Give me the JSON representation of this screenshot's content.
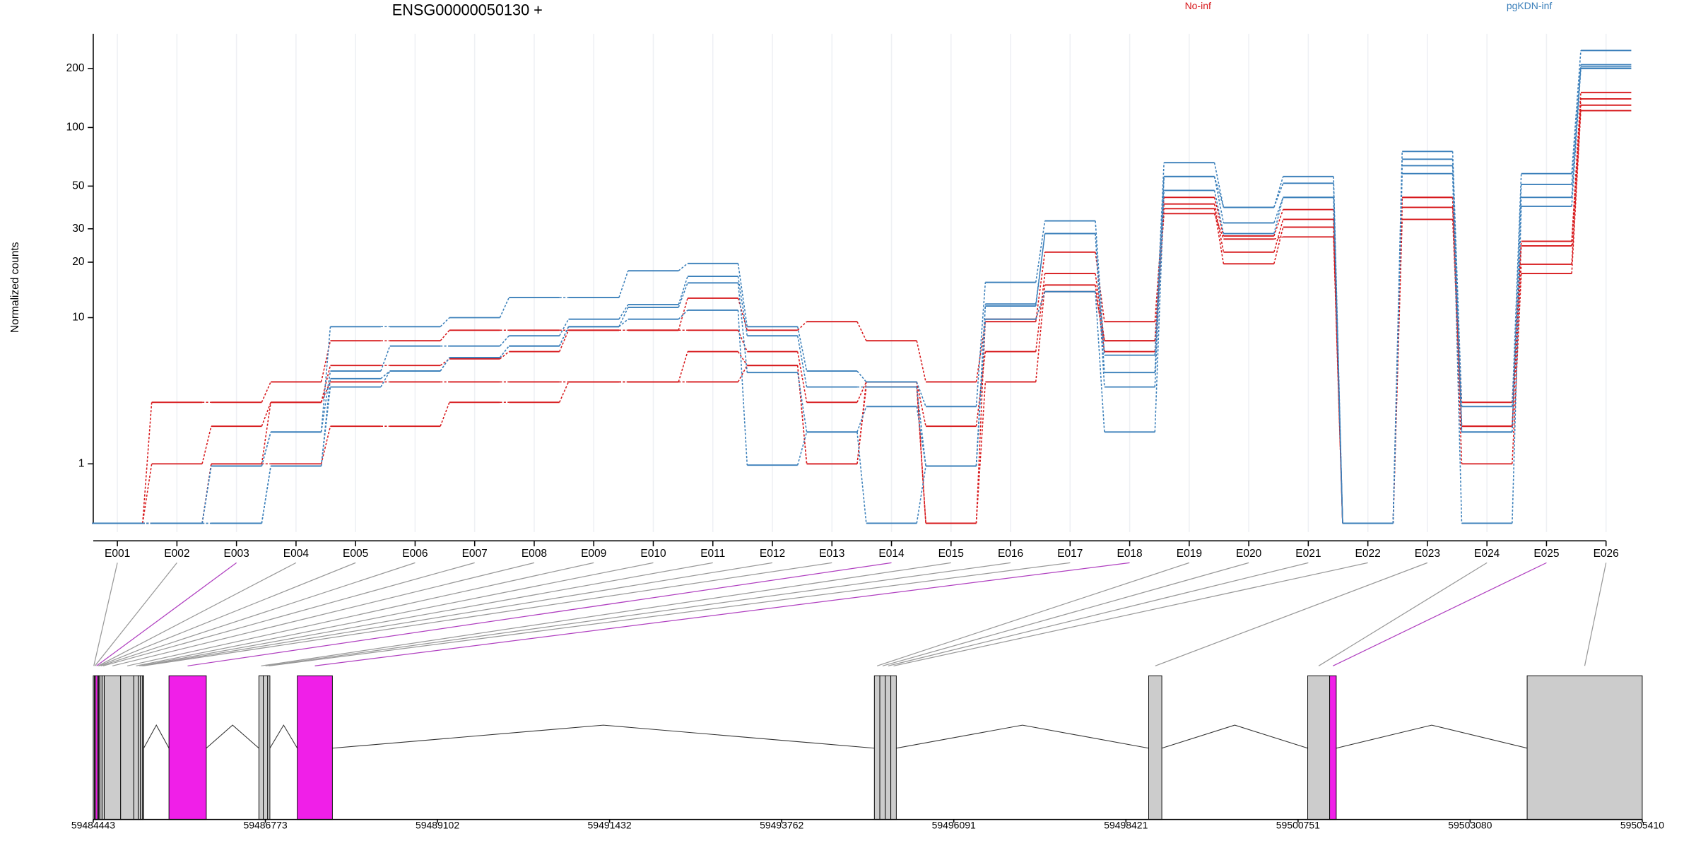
{
  "chart_data": {
    "type": "exon-usage",
    "title": "ENSG00000050130 +",
    "y_label": "Normalized counts",
    "yscale": "log1p",
    "ylim": [
      0,
      300
    ],
    "yticks": [
      1,
      10,
      20,
      30,
      50,
      100,
      200
    ],
    "x_grid": true,
    "legend": "top",
    "categories": [
      "E001",
      "E002",
      "E003",
      "E004",
      "E005",
      "E006",
      "E007",
      "E008",
      "E009",
      "E010",
      "E011",
      "E012",
      "E013",
      "E014",
      "E015",
      "E016",
      "E017",
      "E018",
      "E019",
      "E020",
      "E021",
      "E022",
      "E023",
      "E024",
      "E025",
      "E026"
    ],
    "groups": [
      {
        "name": "No-inf",
        "color": "#d7191c",
        "series": [
          [
            0,
            3.1,
            3.1,
            4.2,
            7.4,
            7.4,
            8.5,
            8.5,
            8.5,
            8.5,
            12.8,
            8.5,
            9.5,
            7.4,
            4.2,
            9.5,
            22.6,
            9.5,
            43.7,
            27.5,
            37.8,
            0,
            43.7,
            3.1,
            25.8,
            151
          ],
          [
            0,
            1,
            2.1,
            3.1,
            5.3,
            5.3,
            5.8,
            6.4,
            8.5,
            8.5,
            8.5,
            6.4,
            3.1,
            4.2,
            2.1,
            6.4,
            17.4,
            7.4,
            40.4,
            22.6,
            33.6,
            0,
            38.8,
            2.1,
            24.4,
            140
          ],
          [
            0,
            0,
            1,
            3.1,
            4.2,
            4.2,
            4.2,
            4.2,
            4.2,
            4.2,
            6.4,
            5.3,
            1,
            4.2,
            0,
            4.2,
            15.1,
            6.4,
            38.2,
            19.6,
            30.6,
            0,
            33.6,
            2.1,
            19.5,
            130
          ],
          [
            0,
            0,
            1,
            1,
            2.1,
            2.1,
            3.1,
            3.1,
            4.2,
            4.2,
            4.2,
            5.3,
            1,
            3.9,
            0,
            9.8,
            13.9,
            7.4,
            36,
            26.5,
            27.2,
            0,
            43.7,
            1,
            17.4,
            122
          ]
        ]
      },
      {
        "name": "pgKDN-inf",
        "color": "#3a7fba",
        "series": [
          [
            0,
            0,
            0.95,
            1.9,
            8.9,
            8.9,
            10,
            12.9,
            12.9,
            18,
            19.7,
            8.9,
            4.9,
            4.2,
            2.9,
            15.6,
            33,
            6.1,
            66,
            38.8,
            56,
            0,
            75.4,
            2.9,
            58,
            247
          ],
          [
            0,
            0,
            0.95,
            1.9,
            4.9,
            6.9,
            6.9,
            7.9,
            9.8,
            11.8,
            16.8,
            7.9,
            3.9,
            3.9,
            0.95,
            11.9,
            28.3,
            4.8,
            56,
            38.8,
            51.7,
            0,
            68.8,
            1.9,
            51,
            209
          ],
          [
            0,
            0,
            0,
            0.95,
            4.4,
            4.9,
            5.9,
            6.9,
            8.9,
            11.4,
            15.5,
            4.8,
            1.9,
            2.9,
            0.95,
            11.6,
            28.3,
            3.9,
            56,
            32.2,
            43.7,
            0,
            63.7,
            1.9,
            43.7,
            204
          ],
          [
            0,
            0,
            0,
            0.95,
            3.9,
            4.9,
            5.9,
            6.9,
            8.9,
            9.8,
            11,
            0.97,
            1.9,
            0,
            0.95,
            9.8,
            13.9,
            1.9,
            47.5,
            28.3,
            43.7,
            0,
            58,
            0,
            39.3,
            200
          ]
        ]
      }
    ],
    "gene_model": {
      "xlim": [
        59484443,
        59505410
      ],
      "xticks": [
        59484443,
        59486773,
        59489102,
        59491432,
        59493762,
        59496091,
        59498421,
        59500751,
        59503080,
        59505410
      ],
      "exon_color": "#cccccc",
      "highlight_color": "#f01fe8",
      "exons": [
        {
          "start": 59484443,
          "end": 59484458,
          "highlight": false
        },
        {
          "start": 59484458,
          "end": 59484473,
          "highlight": false
        },
        {
          "start": 59484473,
          "end": 59484502,
          "highlight": true
        },
        {
          "start": 59484502,
          "end": 59484517,
          "highlight": false
        },
        {
          "start": 59484517,
          "end": 59484532,
          "highlight": false
        },
        {
          "start": 59484532,
          "end": 59484562,
          "highlight": false
        },
        {
          "start": 59484562,
          "end": 59484592,
          "highlight": false
        },
        {
          "start": 59484592,
          "end": 59484814,
          "highlight": false
        },
        {
          "start": 59484814,
          "end": 59484992,
          "highlight": false
        },
        {
          "start": 59484992,
          "end": 59485052,
          "highlight": false
        },
        {
          "start": 59485052,
          "end": 59485082,
          "highlight": false
        },
        {
          "start": 59485082,
          "end": 59485111,
          "highlight": false
        },
        {
          "start": 59485111,
          "end": 59485126,
          "highlight": false
        },
        {
          "start": 59485468,
          "end": 59485973,
          "highlight": true
        },
        {
          "start": 59486685,
          "end": 59486745,
          "highlight": false
        },
        {
          "start": 59486745,
          "end": 59486804,
          "highlight": false
        },
        {
          "start": 59486804,
          "end": 59486834,
          "highlight": false
        },
        {
          "start": 59487205,
          "end": 59487680,
          "highlight": true
        },
        {
          "start": 59495016,
          "end": 59495090,
          "highlight": false
        },
        {
          "start": 59495090,
          "end": 59495165,
          "highlight": false
        },
        {
          "start": 59495165,
          "end": 59495239,
          "highlight": false
        },
        {
          "start": 59495239,
          "end": 59495313,
          "highlight": false
        },
        {
          "start": 59498729,
          "end": 59498907,
          "highlight": false
        },
        {
          "start": 59500882,
          "end": 59501179,
          "highlight": false
        },
        {
          "start": 59501179,
          "end": 59501268,
          "highlight": true
        },
        {
          "start": 59503852,
          "end": 59505410,
          "highlight": false
        }
      ]
    }
  }
}
